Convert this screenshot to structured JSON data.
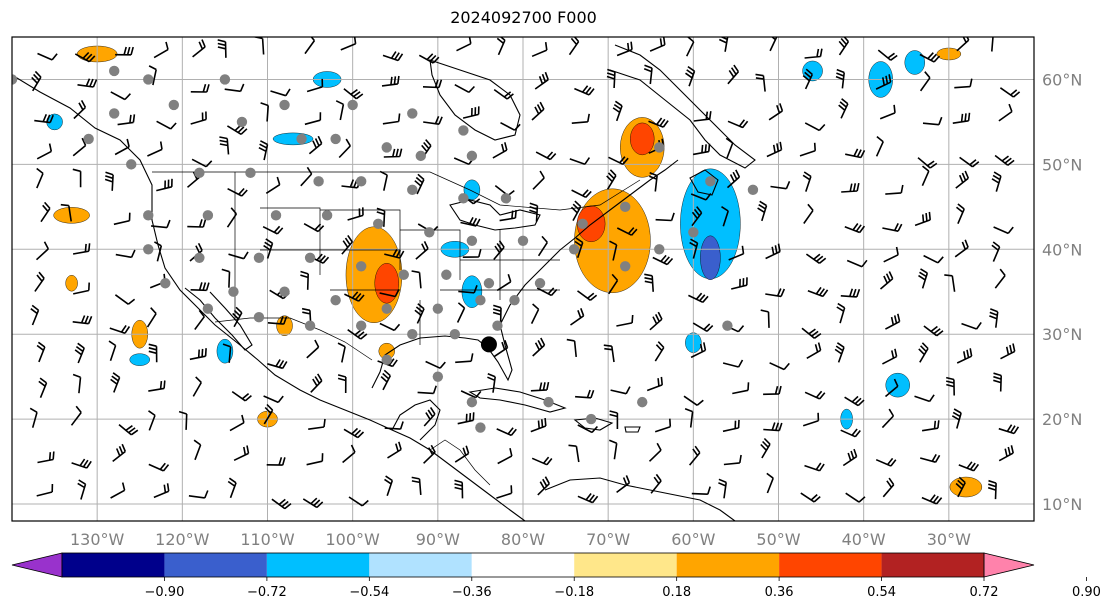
{
  "title": "2024092700 F000",
  "map": {
    "lon_range": [
      -140,
      -20
    ],
    "lat_range": [
      8,
      65
    ],
    "lon_ticks": [
      {
        "value": -130,
        "label": "130°W"
      },
      {
        "value": -120,
        "label": "120°W"
      },
      {
        "value": -110,
        "label": "110°W"
      },
      {
        "value": -100,
        "label": "100°W"
      },
      {
        "value": -90,
        "label": "90°W"
      },
      {
        "value": -80,
        "label": "80°W"
      },
      {
        "value": -70,
        "label": "70°W"
      },
      {
        "value": -60,
        "label": "60°W"
      },
      {
        "value": -50,
        "label": "50°W"
      },
      {
        "value": -40,
        "label": "40°W"
      },
      {
        "value": -30,
        "label": "30°W"
      }
    ],
    "lat_ticks": [
      {
        "value": 60,
        "label": "60°N"
      },
      {
        "value": 50,
        "label": "50°N"
      },
      {
        "value": 40,
        "label": "40°N"
      },
      {
        "value": 30,
        "label": "30°N"
      },
      {
        "value": 20,
        "label": "20°N"
      },
      {
        "value": 10,
        "label": "10°N"
      }
    ],
    "gridlines": true,
    "storm_center": {
      "lon": -84,
      "lat": 28.8
    },
    "station_color": "#808080"
  },
  "colorbar": {
    "levels": [
      "−0.90",
      "−0.72",
      "−0.54",
      "−0.36",
      "−0.18",
      "0.18",
      "0.36",
      "0.54",
      "0.72",
      "0.90"
    ],
    "colors": [
      "#9932cc",
      "#00008b",
      "#3a5fcd",
      "#00bfff",
      "#b0e2ff",
      "#ffffff",
      "#ffe78a",
      "#ffa500",
      "#ff4500",
      "#b22222",
      "#ff82ab"
    ],
    "extend": "both"
  }
}
